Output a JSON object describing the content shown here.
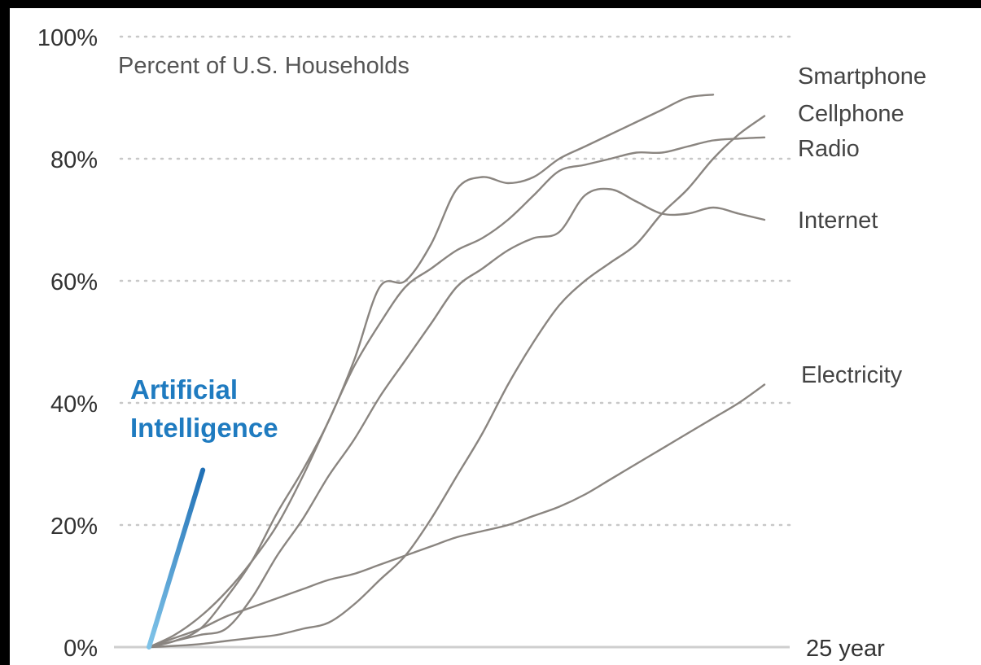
{
  "chart_data": {
    "type": "line",
    "subtitle": "Percent of U.S. Households",
    "x_end_label": "25 year",
    "xlim": [
      0,
      25
    ],
    "ylim": [
      0,
      100
    ],
    "yticks": [
      {
        "value": 0,
        "label": "0%"
      },
      {
        "value": 20,
        "label": "20%"
      },
      {
        "value": 40,
        "label": "40%"
      },
      {
        "value": 60,
        "label": "60%"
      },
      {
        "value": 80,
        "label": "80%"
      },
      {
        "value": 100,
        "label": "100%"
      }
    ],
    "grid": true,
    "line_color": "#8a8580",
    "series": [
      {
        "name": "Smartphone",
        "x": [
          0,
          1,
          2,
          3,
          4,
          5,
          6,
          7,
          8,
          9,
          10,
          11,
          12,
          13,
          14,
          15,
          16,
          17,
          18,
          19,
          20,
          21,
          22
        ],
        "y": [
          0,
          1,
          3,
          8,
          14,
          22,
          29,
          37,
          47,
          59,
          60,
          66,
          75,
          77,
          76,
          77,
          80,
          82,
          84,
          86,
          88,
          90,
          90.5
        ]
      },
      {
        "name": "Cellphone",
        "x": [
          0,
          1,
          2,
          3,
          4,
          5,
          6,
          7,
          8,
          9,
          10,
          11,
          12,
          13,
          14,
          15,
          16,
          17,
          18,
          19,
          20,
          21,
          22,
          23,
          24
        ],
        "y": [
          0,
          0.2,
          0.5,
          1,
          1.5,
          2,
          3,
          4,
          7,
          11,
          15,
          21,
          28,
          35,
          43,
          50,
          56,
          60,
          63,
          66,
          71,
          75,
          80,
          84,
          87
        ]
      },
      {
        "name": "Radio",
        "x": [
          0,
          1,
          2,
          3,
          4,
          5,
          6,
          7,
          8,
          9,
          10,
          11,
          12,
          13,
          14,
          15,
          16,
          17,
          18,
          19,
          20,
          21,
          22,
          23,
          24
        ],
        "y": [
          0,
          2,
          5,
          9,
          14,
          20,
          28,
          37,
          46,
          53,
          59,
          62,
          65,
          67,
          70,
          74,
          78,
          79,
          80,
          81,
          81,
          82,
          83,
          83.3,
          83.5
        ]
      },
      {
        "name": "Internet",
        "x": [
          0,
          1,
          2,
          3,
          4,
          5,
          6,
          7,
          8,
          9,
          10,
          11,
          12,
          13,
          14,
          15,
          16,
          17,
          18,
          19,
          20,
          21,
          22,
          23,
          24
        ],
        "y": [
          0,
          1,
          2,
          3,
          8,
          15,
          21,
          28,
          34,
          41,
          47,
          53,
          59,
          62,
          65,
          67,
          68,
          74,
          75,
          73,
          71,
          71,
          72,
          71,
          70
        ]
      },
      {
        "name": "Electricity",
        "x": [
          0,
          1,
          2,
          3,
          4,
          5,
          6,
          7,
          8,
          9,
          10,
          11,
          12,
          13,
          14,
          15,
          16,
          17,
          18,
          19,
          20,
          21,
          22,
          23,
          24
        ],
        "y": [
          0,
          1.5,
          3,
          5,
          6.5,
          8,
          9.5,
          11,
          12,
          13.5,
          15,
          16.5,
          18,
          19,
          20,
          21.5,
          23,
          25,
          27.5,
          30,
          32.5,
          35,
          37.5,
          40,
          43
        ]
      },
      {
        "name": "Artificial Intelligence",
        "color": "#1f7bc0",
        "color_start": "#7fc3e8",
        "x": [
          0,
          2.1
        ],
        "y": [
          0,
          29
        ]
      }
    ],
    "label_positions_note": "",
    "labels": {
      "smartphone": "Smartphone",
      "cellphone": "Cellphone",
      "radio": "Radio",
      "internet": "Internet",
      "electricity": "Electricity",
      "ai_line1": "Artificial",
      "ai_line2": "Intelligence"
    }
  }
}
